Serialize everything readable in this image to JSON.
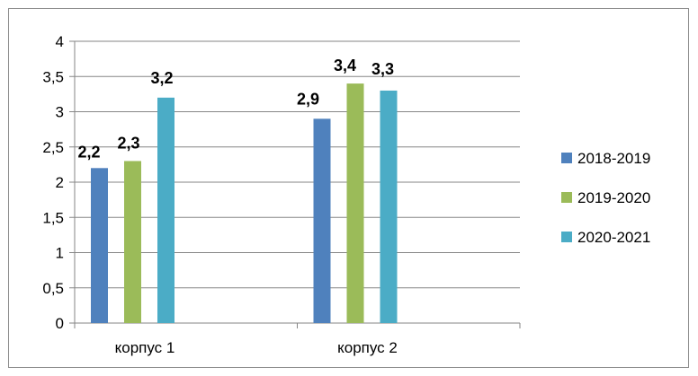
{
  "chart_data": {
    "type": "bar",
    "categories": [
      "корпус 1",
      "корпус 2"
    ],
    "series": [
      {
        "name": "2018-2019",
        "values": [
          2.2,
          2.9
        ],
        "labels": [
          "2,2",
          "2,9"
        ],
        "color": "#4f81bd"
      },
      {
        "name": "2019-2020",
        "values": [
          2.3,
          3.4
        ],
        "labels": [
          "2,3",
          "3,4"
        ],
        "color": "#9bbb59"
      },
      {
        "name": "2020-2021",
        "values": [
          3.2,
          3.3
        ],
        "labels": [
          "3,2",
          "3,3"
        ],
        "color": "#4bacc6"
      }
    ],
    "ylim": [
      0,
      4
    ],
    "yticks": [
      {
        "value": 0,
        "label": "0"
      },
      {
        "value": 0.5,
        "label": "0,5"
      },
      {
        "value": 1,
        "label": "1"
      },
      {
        "value": 1.5,
        "label": "1,5"
      },
      {
        "value": 2,
        "label": "2"
      },
      {
        "value": 2.5,
        "label": "2,5"
      },
      {
        "value": 3,
        "label": "3"
      },
      {
        "value": 3.5,
        "label": "3,5"
      },
      {
        "value": 4,
        "label": "4"
      }
    ],
    "grid": true,
    "legend_position": "right",
    "gridline_color": "#868686"
  }
}
